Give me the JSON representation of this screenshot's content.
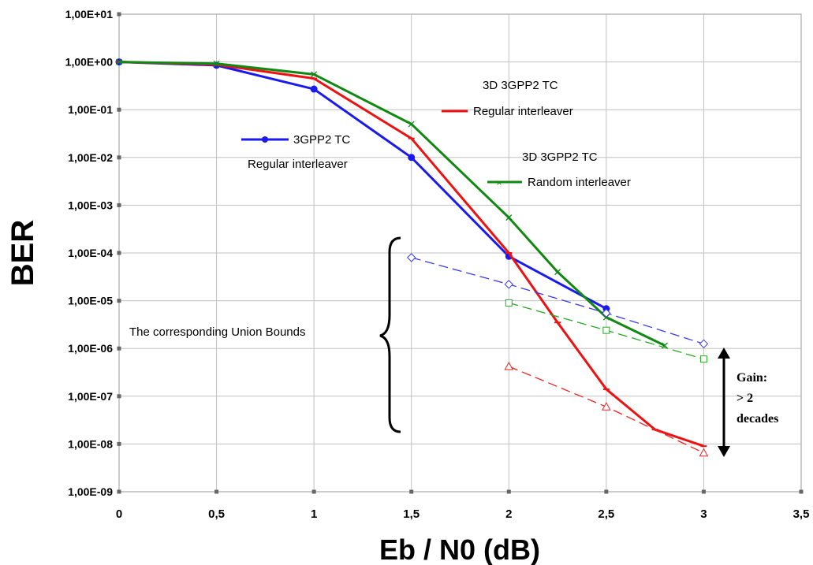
{
  "chart_data": {
    "type": "line",
    "title": "",
    "xlabel": "Eb / N0 (dB)",
    "ylabel": "BER",
    "xlim": [
      0,
      3.5
    ],
    "ylim": [
      1e-09,
      10
    ],
    "y_scale": "log",
    "grid": true,
    "x_ticks": [
      "0",
      "0,5",
      "1",
      "1,5",
      "2",
      "2,5",
      "3",
      "3,5"
    ],
    "y_ticks": [
      "1,00E-09",
      "1,00E-08",
      "1,00E-07",
      "1,00E-06",
      "1,00E-05",
      "1,00E-04",
      "1,00E-03",
      "1,00E-02",
      "1,00E-01",
      "1,00E+00",
      "1,00E+01"
    ],
    "series": [
      {
        "name": "3GPP2 TC Regular interleaver",
        "color": "#1a1aee",
        "style": "solid",
        "marker": "dot",
        "x": [
          0,
          0.5,
          1,
          1.5,
          2,
          2.5
        ],
        "y": [
          1,
          0.85,
          0.27,
          0.01,
          8.5e-05,
          6.8e-06
        ]
      },
      {
        "name": "3D 3GPP2 TC Regular interleaver",
        "color": "#ee1111",
        "style": "solid",
        "marker": "dash",
        "x": [
          0,
          0.5,
          1,
          1.5,
          2,
          2.25,
          2.5,
          2.75,
          3
        ],
        "y": [
          1,
          0.88,
          0.45,
          0.025,
          0.0001,
          3.5e-06,
          1.4e-07,
          2e-08,
          9e-09
        ]
      },
      {
        "name": "3D 3GPP2 TC Random interleaver",
        "color": "#118811",
        "style": "solid",
        "marker": "x",
        "x": [
          0,
          0.5,
          1,
          1.5,
          2,
          2.25,
          2.5,
          2.8
        ],
        "y": [
          1,
          0.92,
          0.55,
          0.05,
          0.00055,
          4e-05,
          4.5e-06,
          1.15e-06
        ]
      },
      {
        "name": "",
        "color": "#3a3aee",
        "style": "dashed",
        "marker": "diamond",
        "x": [
          1.5,
          2,
          2.5,
          3
        ],
        "y": [
          8e-05,
          2.2e-05,
          5.5e-06,
          1.25e-06
        ]
      },
      {
        "name": "",
        "color": "#22aa22",
        "style": "dashed",
        "marker": "square",
        "x": [
          2,
          2.5,
          3
        ],
        "y": [
          9e-06,
          2.4e-06,
          6e-07
        ]
      },
      {
        "name": "",
        "color": "#ee2222",
        "style": "dashed",
        "marker": "triangle",
        "x": [
          2,
          2.5,
          3
        ],
        "y": [
          4.2e-07,
          6e-08,
          6.5e-09
        ]
      }
    ],
    "annotations": {
      "blue_line1": "3GPP2 TC",
      "blue_line2": "Regular interleaver",
      "red_line1": "3D 3GPP2 TC",
      "red_line2": "Regular interleaver",
      "green_line1": "3D 3GPP2 TC",
      "green_line2": "Random interleaver",
      "union_bounds": "The corresponding Union Bounds",
      "gain_line1": "Gain:",
      "gain_line2": "> 2",
      "gain_line3": "decades"
    }
  }
}
